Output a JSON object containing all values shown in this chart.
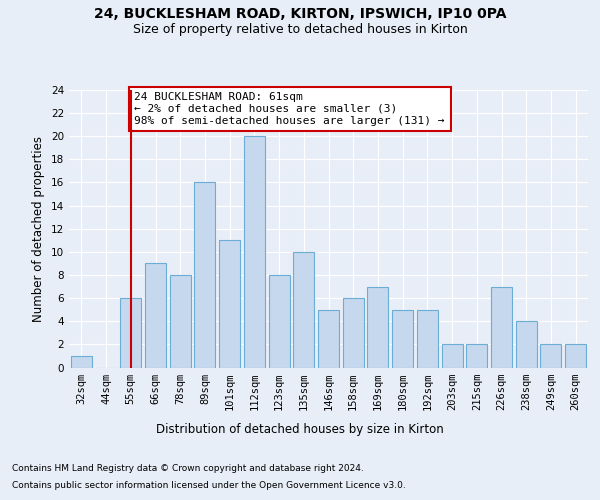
{
  "title1": "24, BUCKLESHAM ROAD, KIRTON, IPSWICH, IP10 0PA",
  "title2": "Size of property relative to detached houses in Kirton",
  "xlabel": "Distribution of detached houses by size in Kirton",
  "ylabel": "Number of detached properties",
  "categories": [
    "32sqm",
    "44sqm",
    "55sqm",
    "66sqm",
    "78sqm",
    "89sqm",
    "101sqm",
    "112sqm",
    "123sqm",
    "135sqm",
    "146sqm",
    "158sqm",
    "169sqm",
    "180sqm",
    "192sqm",
    "203sqm",
    "215sqm",
    "226sqm",
    "238sqm",
    "249sqm",
    "260sqm"
  ],
  "values": [
    1,
    0,
    6,
    9,
    8,
    16,
    11,
    20,
    8,
    10,
    5,
    6,
    7,
    5,
    5,
    2,
    2,
    7,
    4,
    2,
    2
  ],
  "bar_color": "#c5d8ed",
  "bar_edge_color": "#6aaed6",
  "red_line_index": 2,
  "ylim": [
    0,
    24
  ],
  "yticks": [
    0,
    2,
    4,
    6,
    8,
    10,
    12,
    14,
    16,
    18,
    20,
    22,
    24
  ],
  "annotation_text": "24 BUCKLESHAM ROAD: 61sqm\n← 2% of detached houses are smaller (3)\n98% of semi-detached houses are larger (131) →",
  "annotation_box_color": "#ffffff",
  "annotation_box_edge_color": "#cc0000",
  "footnote1": "Contains HM Land Registry data © Crown copyright and database right 2024.",
  "footnote2": "Contains public sector information licensed under the Open Government Licence v3.0.",
  "background_color": "#e8eef7",
  "grid_color": "#ffffff",
  "title1_fontsize": 10,
  "title2_fontsize": 9,
  "axis_label_fontsize": 8.5,
  "tick_fontsize": 7.5,
  "annotation_fontsize": 8,
  "footnote_fontsize": 6.5
}
